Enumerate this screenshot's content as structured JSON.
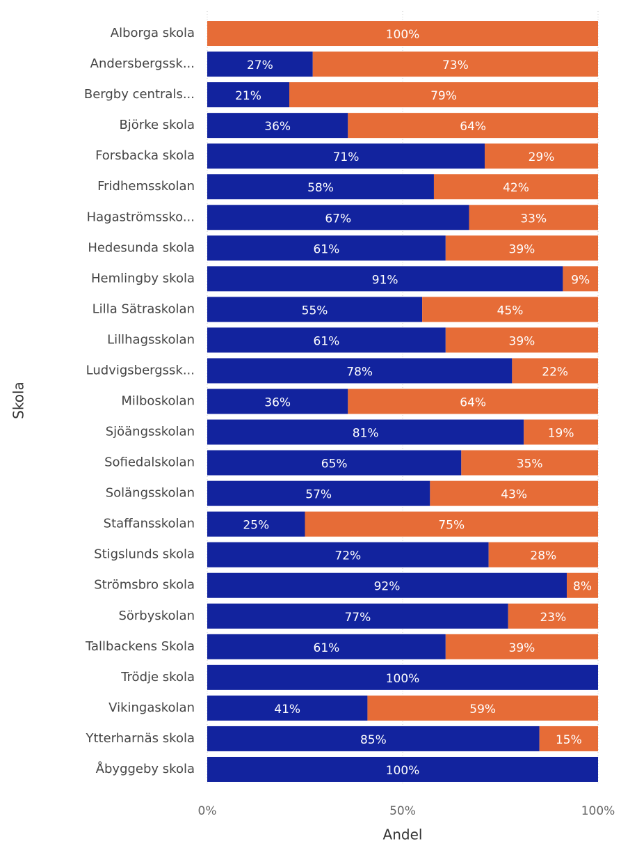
{
  "chart_data": {
    "type": "stacked_barh",
    "xlabel": "Andel",
    "ylabel": "Skola",
    "categories": [
      "Alborga skola",
      "Andersbergssk...",
      "Bergby centrals...",
      "Björke skola",
      "Forsbacka skola",
      "Fridhemsskolan",
      "Hagaströmssko...",
      "Hedesunda skola",
      "Hemlingby skola",
      "Lilla Sätraskolan",
      "Lillhagsskolan",
      "Ludvigsbergssk...",
      "Milboskolan",
      "Sjöängsskolan",
      "Sofiedalskolan",
      "Solängsskolan",
      "Staffansskolan",
      "Stigslunds skola",
      "Strömsbro skola",
      "Sörbyskolan",
      "Tallbackens Skola",
      "Trödje skola",
      "Vikingaskolan",
      "Ytterharnäs skola",
      "Åbyggeby skola"
    ],
    "series": [
      {
        "color": "#12239e",
        "values": [
          0,
          27,
          21,
          36,
          71,
          58,
          67,
          61,
          91,
          55,
          61,
          78,
          36,
          81,
          65,
          57,
          25,
          72,
          92,
          77,
          61,
          100,
          41,
          85,
          100
        ],
        "value_labels": [
          null,
          "27%",
          "21%",
          "36%",
          "71%",
          "58%",
          "67%",
          "61%",
          "91%",
          "55%",
          "61%",
          "78%",
          "36%",
          "81%",
          "65%",
          "57%",
          "25%",
          "72%",
          "92%",
          "77%",
          "61%",
          "100%",
          "41%",
          "85%",
          "100%"
        ]
      },
      {
        "color": "#e66c37",
        "values": [
          100,
          73,
          79,
          64,
          29,
          42,
          33,
          39,
          9,
          45,
          39,
          22,
          64,
          19,
          35,
          43,
          75,
          28,
          8,
          23,
          39,
          0,
          59,
          15,
          0
        ],
        "value_labels": [
          "100%",
          "73%",
          "79%",
          "64%",
          "29%",
          "42%",
          "33%",
          "39%",
          "9%",
          "45%",
          "39%",
          "22%",
          "64%",
          "19%",
          "35%",
          "43%",
          "75%",
          "28%",
          "8%",
          "23%",
          "39%",
          null,
          "59%",
          "15%",
          null
        ]
      }
    ],
    "xlim": [
      0,
      100
    ],
    "xticks": [
      {
        "value": 0,
        "label": "0%"
      },
      {
        "value": 50,
        "label": "50%"
      },
      {
        "value": 100,
        "label": "100%"
      }
    ],
    "grid": true
  }
}
